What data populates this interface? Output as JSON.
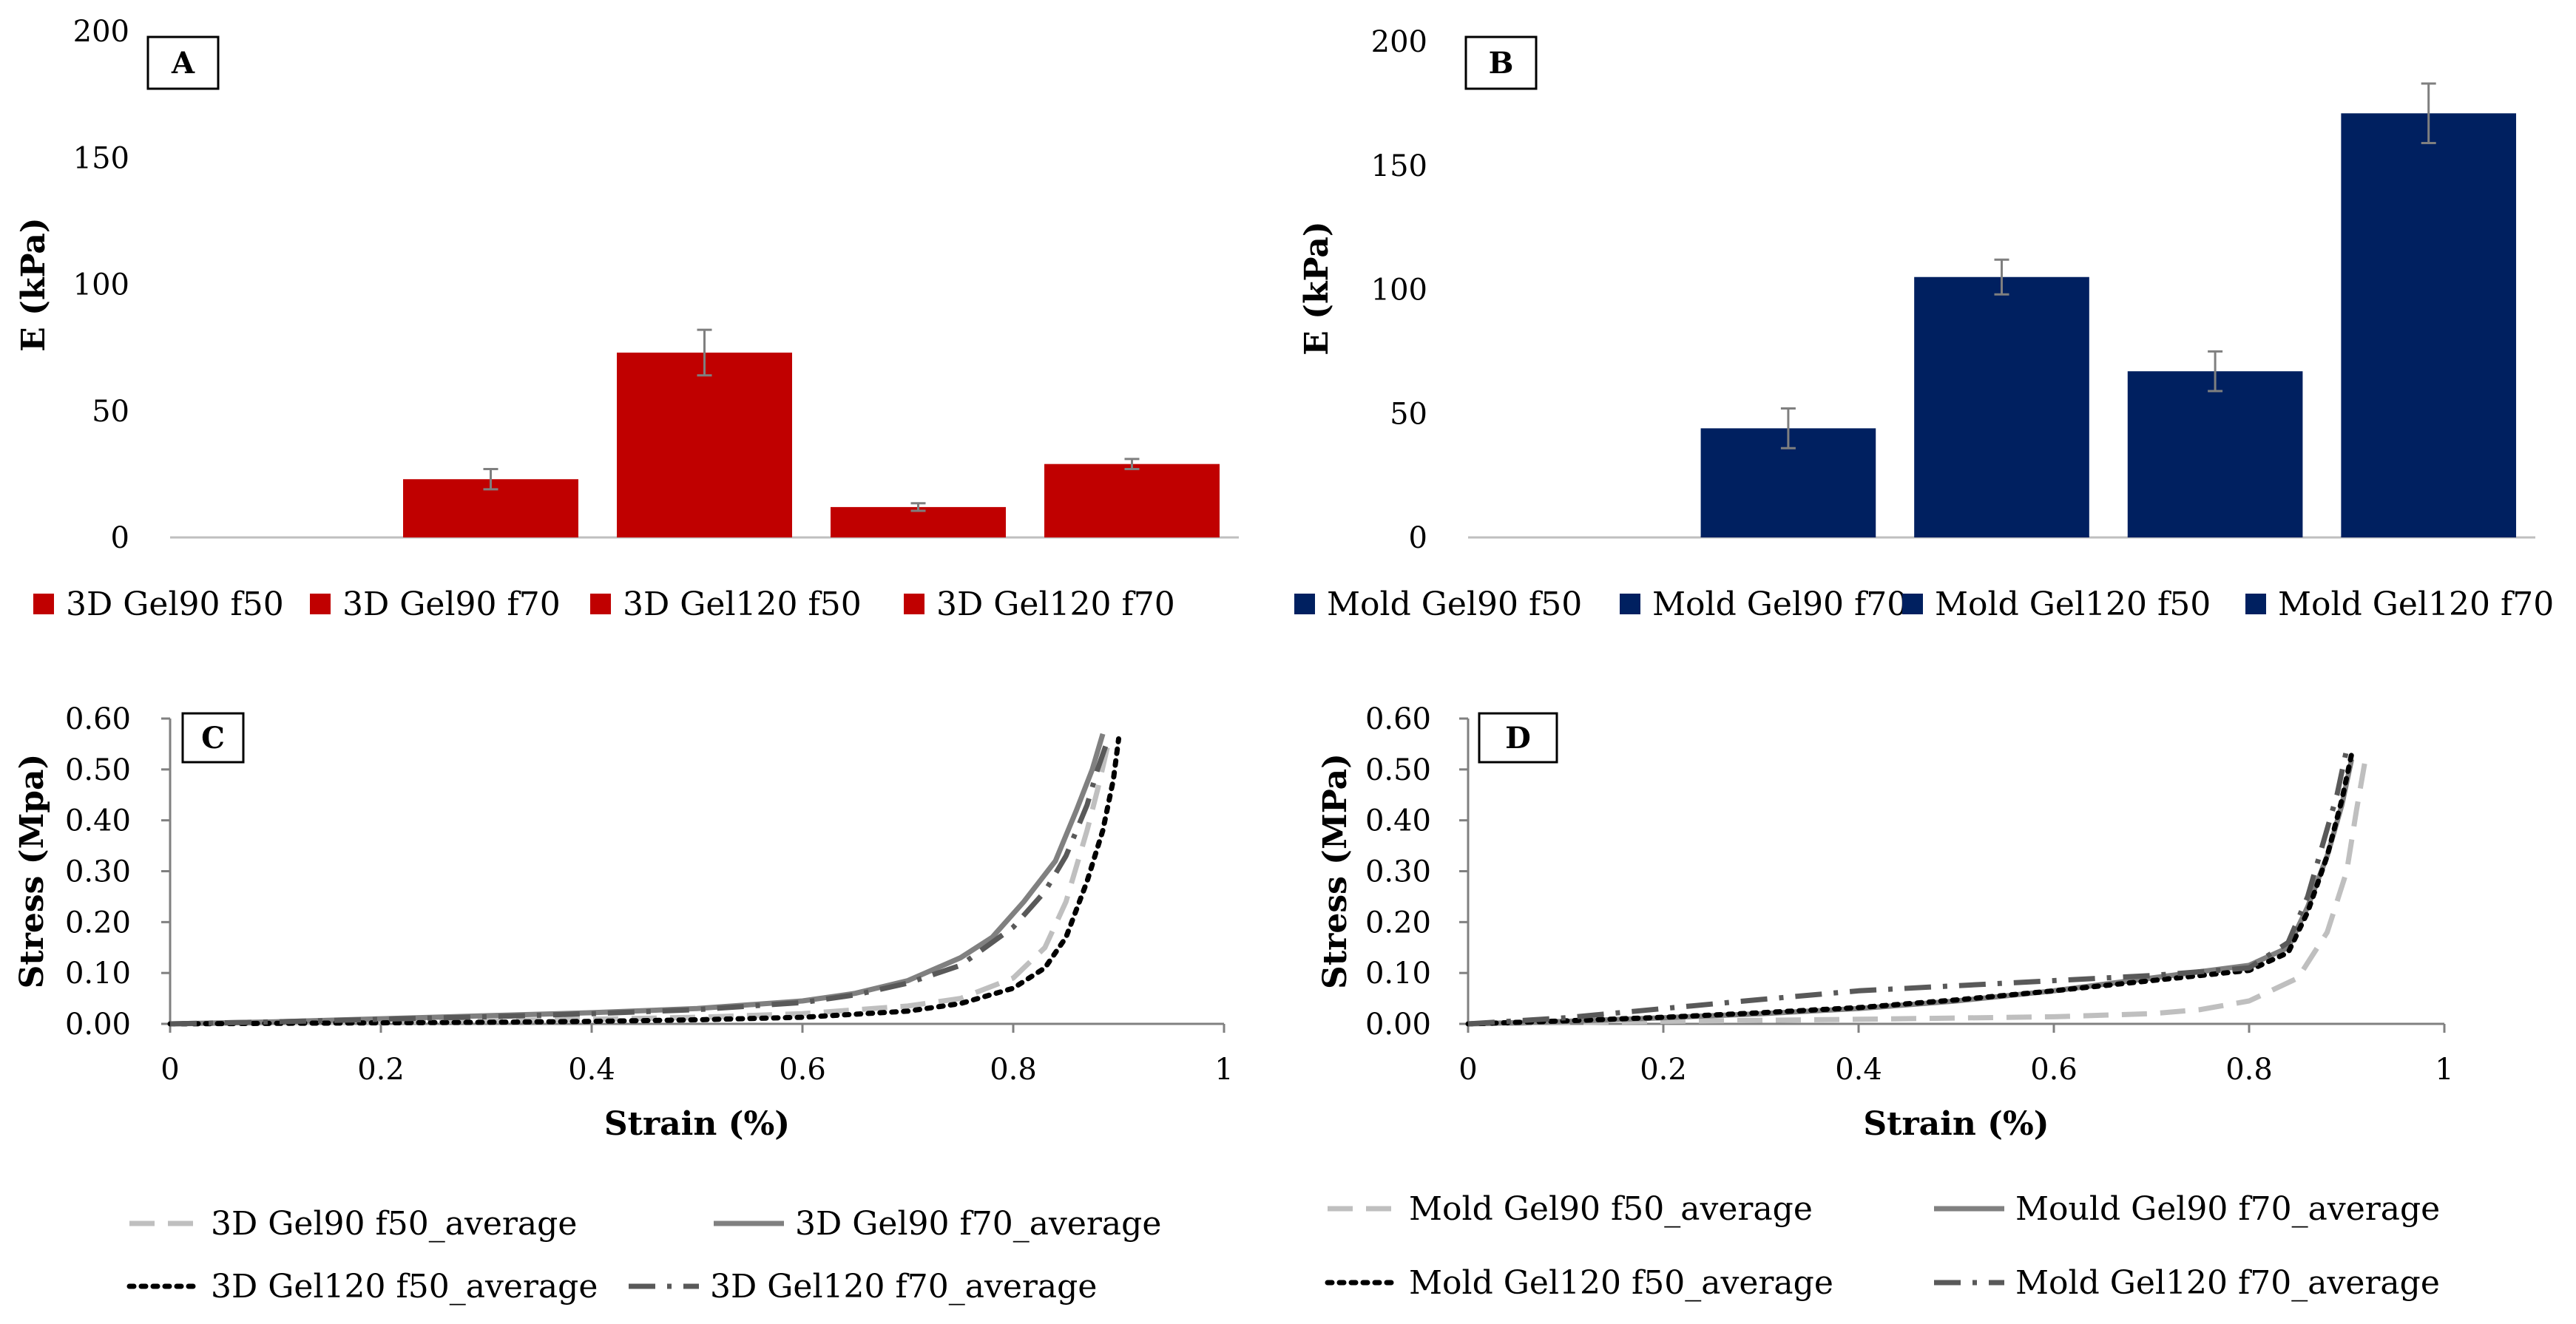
{
  "chart_data": [
    {
      "panel": "A",
      "type": "bar",
      "ylabel": "E (kPa)",
      "ylim": [
        0,
        200
      ],
      "yticks": [
        0,
        50,
        100,
        150,
        200
      ],
      "grid": false,
      "legend_placement": "bottom",
      "series_color": "#C00000",
      "series": [
        {
          "name": "3D Gel90 f50",
          "value": 23,
          "error": 4
        },
        {
          "name": "3D Gel90 f70",
          "value": 73,
          "error": 9
        },
        {
          "name": "3D Gel120 f50",
          "value": 12,
          "error": 1.5
        },
        {
          "name": "3D Gel120 f70",
          "value": 29,
          "error": 2
        }
      ]
    },
    {
      "panel": "B",
      "type": "bar",
      "ylabel": "E (kPa)",
      "ylim": [
        0,
        200
      ],
      "yticks": [
        0,
        50,
        100,
        150,
        200
      ],
      "grid": false,
      "legend_placement": "bottom",
      "series_color": "#002060",
      "series": [
        {
          "name": "Mold Gel90 f50",
          "value": 44,
          "error": 8
        },
        {
          "name": "Mold Gel90 f70",
          "value": 105,
          "error": 7
        },
        {
          "name": "Mold Gel120 f50",
          "value": 67,
          "error": 8
        },
        {
          "name": "Mold Gel120 f70",
          "value": 171,
          "error": 12
        }
      ]
    },
    {
      "panel": "C",
      "type": "line",
      "xlabel": "Strain (%)",
      "ylabel": "Stress (Mpa)",
      "xlim": [
        0,
        1
      ],
      "ylim": [
        0,
        0.6
      ],
      "xticks": [
        "0",
        "0.2",
        "0.4",
        "0.6",
        "0.8",
        "1"
      ],
      "yticks": [
        "0.00",
        "0.10",
        "0.20",
        "0.30",
        "0.40",
        "0.50",
        "0.60"
      ],
      "grid": false,
      "legend_placement": "bottom",
      "series": [
        {
          "name": "3D Gel90 f50_average",
          "style": "dash",
          "color": "#BFBFBF",
          "x": [
            0,
            0.1,
            0.2,
            0.3,
            0.4,
            0.5,
            0.6,
            0.7,
            0.75,
            0.8,
            0.83,
            0.85,
            0.87,
            0.88,
            0.89
          ],
          "y": [
            0,
            0.002,
            0.004,
            0.006,
            0.009,
            0.013,
            0.02,
            0.035,
            0.05,
            0.09,
            0.15,
            0.24,
            0.38,
            0.46,
            0.55
          ]
        },
        {
          "name": "3D Gel90 f70_average",
          "style": "solid",
          "color": "#808080",
          "x": [
            0,
            0.1,
            0.2,
            0.3,
            0.4,
            0.5,
            0.6,
            0.65,
            0.7,
            0.75,
            0.78,
            0.81,
            0.84,
            0.86,
            0.875,
            0.885
          ],
          "y": [
            0,
            0.004,
            0.01,
            0.016,
            0.022,
            0.03,
            0.045,
            0.06,
            0.085,
            0.13,
            0.17,
            0.24,
            0.32,
            0.42,
            0.5,
            0.57
          ]
        },
        {
          "name": "3D Gel120 f50_average",
          "style": "dot",
          "color": "#000000",
          "x": [
            0,
            0.1,
            0.2,
            0.3,
            0.4,
            0.5,
            0.6,
            0.7,
            0.75,
            0.8,
            0.83,
            0.85,
            0.87,
            0.885,
            0.895,
            0.9
          ],
          "y": [
            0,
            0.001,
            0.002,
            0.003,
            0.005,
            0.008,
            0.013,
            0.025,
            0.04,
            0.07,
            0.11,
            0.17,
            0.28,
            0.38,
            0.48,
            0.56
          ]
        },
        {
          "name": "3D Gel120 f70_average",
          "style": "dashdot",
          "color": "#595959",
          "x": [
            0,
            0.1,
            0.2,
            0.3,
            0.4,
            0.5,
            0.6,
            0.65,
            0.7,
            0.75,
            0.8,
            0.83,
            0.85,
            0.87,
            0.88,
            0.89
          ],
          "y": [
            0,
            0.004,
            0.009,
            0.014,
            0.02,
            0.028,
            0.042,
            0.057,
            0.08,
            0.115,
            0.19,
            0.26,
            0.33,
            0.43,
            0.5,
            0.56
          ]
        }
      ]
    },
    {
      "panel": "D",
      "type": "line",
      "xlabel": "Strain (%)",
      "ylabel": "Stress (MPa)",
      "xlim": [
        0,
        1
      ],
      "ylim": [
        0,
        0.6
      ],
      "xticks": [
        "0",
        "0.2",
        "0.4",
        "0.6",
        "0.8",
        "1"
      ],
      "yticks": [
        "0.00",
        "0.10",
        "0.20",
        "0.30",
        "0.40",
        "0.50",
        "0.60"
      ],
      "grid": false,
      "legend_placement": "bottom",
      "series": [
        {
          "name": "Mold Gel90 f50_average",
          "style": "dash",
          "color": "#BFBFBF",
          "x": [
            0,
            0.2,
            0.4,
            0.6,
            0.7,
            0.75,
            0.8,
            0.85,
            0.88,
            0.9,
            0.91,
            0.92
          ],
          "y": [
            0,
            0.005,
            0.009,
            0.014,
            0.02,
            0.028,
            0.045,
            0.09,
            0.18,
            0.3,
            0.42,
            0.53
          ]
        },
        {
          "name": "Mould Gel90 f70_average",
          "style": "solid",
          "color": "#808080",
          "x": [
            0,
            0.1,
            0.2,
            0.3,
            0.4,
            0.5,
            0.6,
            0.7,
            0.8,
            0.84,
            0.86,
            0.88,
            0.895,
            0.905
          ],
          "y": [
            0,
            0.005,
            0.012,
            0.02,
            0.03,
            0.045,
            0.065,
            0.09,
            0.115,
            0.15,
            0.23,
            0.33,
            0.43,
            0.52
          ]
        },
        {
          "name": "Mold Gel120 f50_average",
          "style": "dot",
          "color": "#000000",
          "x": [
            0,
            0.1,
            0.2,
            0.3,
            0.4,
            0.5,
            0.6,
            0.7,
            0.8,
            0.84,
            0.86,
            0.88,
            0.895,
            0.905
          ],
          "y": [
            0,
            0.006,
            0.013,
            0.022,
            0.032,
            0.047,
            0.065,
            0.085,
            0.105,
            0.14,
            0.22,
            0.33,
            0.44,
            0.53
          ]
        },
        {
          "name": "Mold Gel120 f70_average",
          "style": "dashdot",
          "color": "#595959",
          "x": [
            0,
            0.1,
            0.2,
            0.3,
            0.4,
            0.5,
            0.6,
            0.7,
            0.8,
            0.84,
            0.86,
            0.875,
            0.89,
            0.9
          ],
          "y": [
            0,
            0.012,
            0.03,
            0.048,
            0.065,
            0.075,
            0.085,
            0.095,
            0.11,
            0.16,
            0.25,
            0.35,
            0.45,
            0.54
          ]
        }
      ]
    }
  ]
}
